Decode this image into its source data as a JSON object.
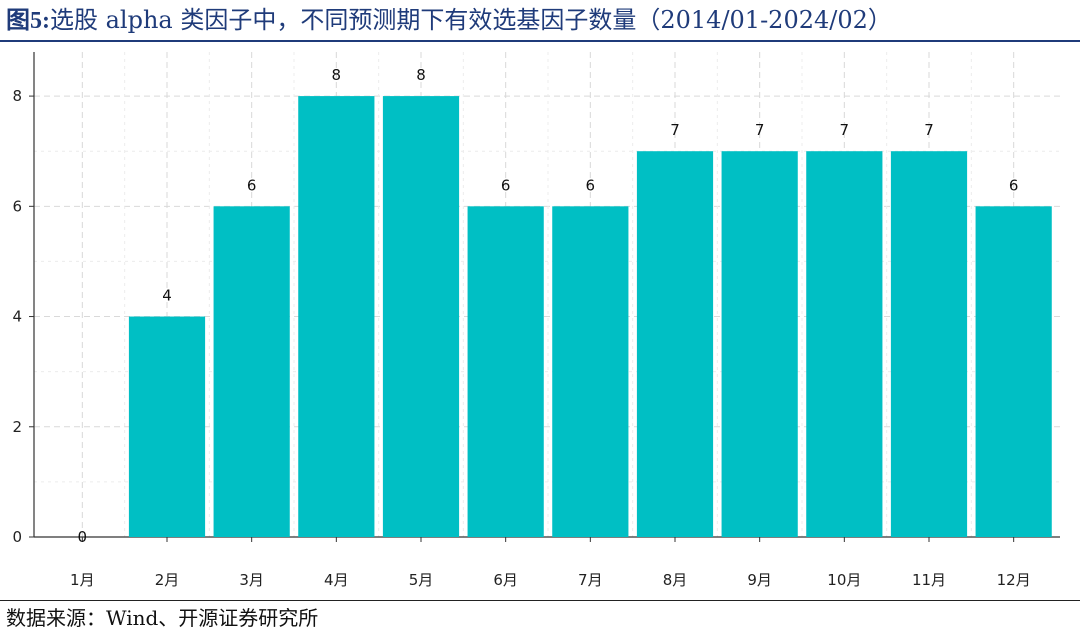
{
  "figure": {
    "title_prefix": "图5:",
    "title_main": "选股 alpha 类因子中，不同预测期下有效选基因子数量（2014/01-2024/02）",
    "source": "数据来源：Wind、开源证券研究所"
  },
  "colors": {
    "bar": "#00BFC4",
    "title": "#1f3b7a",
    "grid": "#d9d9d9"
  },
  "chart_data": {
    "type": "bar",
    "categories": [
      "1月",
      "2月",
      "3月",
      "4月",
      "5月",
      "6月",
      "7月",
      "8月",
      "9月",
      "10月",
      "11月",
      "12月"
    ],
    "values": [
      0,
      4,
      6,
      8,
      8,
      6,
      6,
      7,
      7,
      7,
      7,
      6
    ],
    "ylim": [
      0,
      8.8
    ],
    "yticks": [
      0,
      2,
      4,
      6,
      8
    ],
    "grid": true,
    "data_labels": true,
    "xlabel": "",
    "ylabel": ""
  }
}
